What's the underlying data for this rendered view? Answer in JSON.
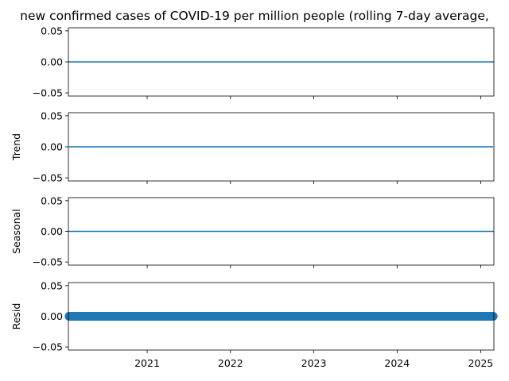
{
  "chart_data": {
    "type": "line",
    "title": "new confirmed cases of COVID-19 per million people (rolling 7-day average,",
    "x_range": [
      "2020-01-22",
      "2025-02-28"
    ],
    "x_ticks": [
      "2021",
      "2022",
      "2023",
      "2024",
      "2025"
    ],
    "x_tick_positions": [
      "2021-01-01",
      "2022-01-01",
      "2023-01-01",
      "2024-01-01",
      "2025-01-01"
    ],
    "grid": false,
    "line_color": "#1f77b4",
    "panels": [
      {
        "ylabel": "",
        "ylim": [
          -0.055,
          0.055
        ],
        "y_ticks": [
          "0.05",
          "0.00",
          "−0.05"
        ],
        "y_tick_values": [
          0.05,
          0.0,
          -0.05
        ],
        "style": "line",
        "x": [
          "2020-01-22",
          "2025-02-28"
        ],
        "y": [
          0,
          0
        ]
      },
      {
        "ylabel": "Trend",
        "ylim": [
          -0.055,
          0.055
        ],
        "y_ticks": [
          "0.05",
          "0.00",
          "−0.05"
        ],
        "y_tick_values": [
          0.05,
          0.0,
          -0.05
        ],
        "style": "line",
        "x": [
          "2020-01-25",
          "2025-02-25"
        ],
        "y": [
          0,
          0
        ]
      },
      {
        "ylabel": "Seasonal",
        "ylim": [
          -0.055,
          0.055
        ],
        "y_ticks": [
          "0.05",
          "0.00",
          "−0.05"
        ],
        "y_tick_values": [
          0.05,
          0.0,
          -0.05
        ],
        "style": "line",
        "x": [
          "2020-01-22",
          "2025-02-28"
        ],
        "y": [
          0,
          0
        ]
      },
      {
        "ylabel": "Resid",
        "ylim": [
          -0.055,
          0.055
        ],
        "y_ticks": [
          "0.05",
          "0.00",
          "−0.05"
        ],
        "y_tick_values": [
          0.05,
          0.0,
          -0.05
        ],
        "style": "markers",
        "x": [
          "2020-01-25",
          "2025-02-25"
        ],
        "y": [
          0,
          0
        ]
      }
    ]
  }
}
